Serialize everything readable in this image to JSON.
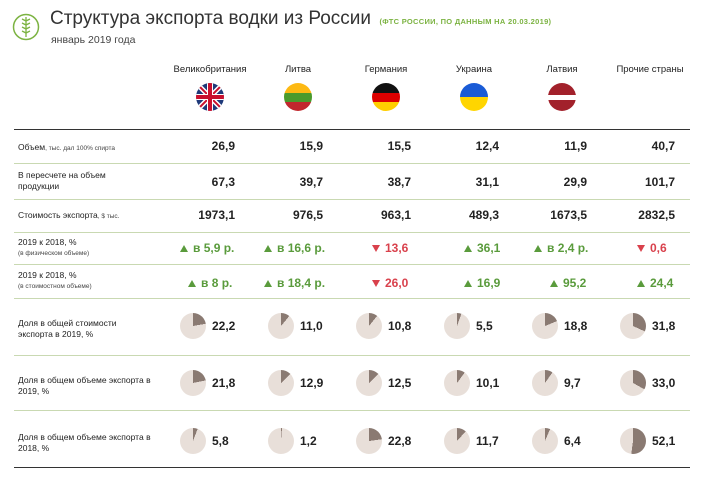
{
  "header": {
    "title": "Структура экспорта водки из России",
    "source": "(ФТС РОССИИ, ПО ДАННЫМ НА 20.03.2019)",
    "subtitle": "январь 2019 года"
  },
  "colors": {
    "up": "#5a9b3c",
    "down": "#d9414c",
    "pie_bg": "#e8dfd9",
    "pie_fill": "#8a7a72",
    "divider": "#c9d9b2",
    "accent": "#7cb342"
  },
  "countries": [
    {
      "name": "Великобритания",
      "flag": "gb-flag-icon"
    },
    {
      "name": "Литва",
      "flag": "lt-flag-icon"
    },
    {
      "name": "Германия",
      "flag": "de-flag-icon"
    },
    {
      "name": "Украина",
      "flag": "ua-flag-icon"
    },
    {
      "name": "Латвия",
      "flag": "lv-flag-icon"
    },
    {
      "name": "Прочие страны",
      "flag": "globe-icon"
    }
  ],
  "rows": {
    "volume": {
      "label": "Объем",
      "label_small": ", тыс. дал 100% спирта",
      "values": [
        "26,9",
        "15,9",
        "15,5",
        "12,4",
        "11,9",
        "40,7"
      ]
    },
    "product": {
      "label": "В пересчете на объем продукции",
      "values": [
        "67,3",
        "39,7",
        "38,7",
        "31,1",
        "29,9",
        "101,7"
      ]
    },
    "cost": {
      "label": "Стоимость экспорта",
      "label_small": ", $ тыс.",
      "values": [
        "1973,1",
        "976,5",
        "963,1",
        "489,3",
        "1673,5",
        "2832,5"
      ]
    },
    "phys_change": {
      "label": "2019 к 2018, %",
      "label_small": "(в физическом объеме)",
      "values": [
        {
          "text": "в 5,9 р.",
          "dir": "up"
        },
        {
          "text": "в 16,6 р.",
          "dir": "up"
        },
        {
          "text": "13,6",
          "dir": "down"
        },
        {
          "text": "36,1",
          "dir": "up"
        },
        {
          "text": "в 2,4 р.",
          "dir": "up"
        },
        {
          "text": "0,6",
          "dir": "down"
        }
      ]
    },
    "value_change": {
      "label": "2019 к 2018, %",
      "label_small": "(в стоимостном объеме)",
      "values": [
        {
          "text": "в 8 р.",
          "dir": "up"
        },
        {
          "text": "в 18,4 р.",
          "dir": "up"
        },
        {
          "text": "26,0",
          "dir": "down"
        },
        {
          "text": "16,9",
          "dir": "up"
        },
        {
          "text": "95,2",
          "dir": "up"
        },
        {
          "text": "24,4",
          "dir": "up"
        }
      ]
    },
    "share_cost_2019": {
      "label": "Доля в общей стоимости экспорта в 2019, %",
      "values": [
        "22,2",
        "11,0",
        "10,8",
        "5,5",
        "18,8",
        "31,8"
      ],
      "pct": [
        22.2,
        11.0,
        10.8,
        5.5,
        18.8,
        31.8
      ]
    },
    "share_vol_2019": {
      "label": "Доля в общем объеме экспорта в 2019, %",
      "values": [
        "21,8",
        "12,9",
        "12,5",
        "10,1",
        "9,7",
        "33,0"
      ],
      "pct": [
        21.8,
        12.9,
        12.5,
        10.1,
        9.7,
        33.0
      ]
    },
    "share_vol_2018": {
      "label": "Доля в общем объеме экспорта в 2018, %",
      "values": [
        "5,8",
        "1,2",
        "22,8",
        "11,7",
        "6,4",
        "52,1"
      ],
      "pct": [
        5.8,
        1.2,
        22.8,
        11.7,
        6.4,
        52.1
      ]
    }
  }
}
